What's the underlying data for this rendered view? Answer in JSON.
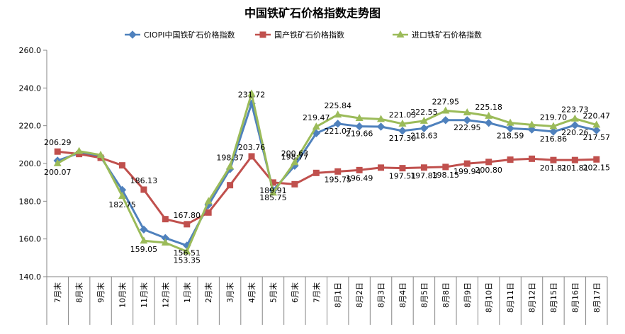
{
  "chart_data": {
    "type": "line",
    "title": "中国铁矿石价格指数走势图",
    "ylim": [
      140,
      260
    ],
    "yticks": [
      "140.0",
      "160.0",
      "180.0",
      "200.0",
      "220.0",
      "240.0",
      "260.0"
    ],
    "categories": [
      "7月末",
      "8月末",
      "9月末",
      "10月末",
      "11月末",
      "12月末",
      "1月末",
      "2月末",
      "3月末",
      "4月末",
      "5月末",
      "6月末",
      "7月末",
      "8月1日",
      "8月2日",
      "8月3日",
      "8月4日",
      "8月5日",
      "8月8日",
      "8月9日",
      "8月10日",
      "8月11日",
      "8月12日",
      "8月15日",
      "8月16日",
      "8月17日"
    ],
    "legend_position": "top",
    "series": [
      {
        "name": "CIOPI中国铁矿石价格指数",
        "color": "#4F81BD",
        "marker": "diamond",
        "values": [
          201.5,
          205.5,
          203.5,
          186.0,
          165.0,
          160.5,
          156.51,
          178.0,
          197.0,
          231.72,
          185.75,
          198.77,
          216.0,
          221.07,
          219.66,
          219.5,
          217.3,
          218.63,
          222.95,
          222.95,
          221.5,
          218.59,
          218.0,
          216.86,
          220.26,
          217.57
        ],
        "labels": [
          "",
          "",
          "",
          "",
          "",
          "",
          "156.51",
          "",
          "",
          "231.72",
          "185.75",
          "198.77",
          "",
          "221.07",
          "219.66",
          "",
          "217.30",
          "218.63",
          "",
          "222.95",
          "",
          "218.59",
          "",
          "216.86",
          "220.26",
          "217.57"
        ]
      },
      {
        "name": "国产铁矿石价格指数",
        "color": "#C0504D",
        "marker": "square",
        "values": [
          206.29,
          205.0,
          203.0,
          199.0,
          186.13,
          170.5,
          167.8,
          174.0,
          188.5,
          203.76,
          189.91,
          189.0,
          195.0,
          195.75,
          196.49,
          197.8,
          197.51,
          197.83,
          198.15,
          199.94,
          200.8,
          202.0,
          202.5,
          201.81,
          201.81,
          202.15
        ],
        "labels": [
          "206.29",
          "",
          "",
          "",
          "186.13",
          "",
          "167.80",
          "",
          "",
          "203.76",
          "189.91",
          "",
          "",
          "195.75",
          "196.49",
          "",
          "197.51",
          "197.83",
          "198.15",
          "199.94",
          "200.80",
          "",
          "",
          "201.81",
          "201.81",
          "202.15"
        ]
      },
      {
        "name": "进口铁矿石价格指数",
        "color": "#9BBB59",
        "marker": "triangle",
        "values": [
          200.07,
          206.5,
          204.5,
          182.75,
          159.05,
          158.0,
          153.35,
          180.0,
          198.37,
          237.0,
          184.5,
          200.63,
          219.47,
          225.84,
          224.0,
          223.5,
          221.03,
          222.55,
          227.95,
          227.0,
          225.18,
          221.5,
          220.5,
          219.7,
          223.73,
          220.47
        ],
        "labels": [
          "200.07",
          "",
          "",
          "182.75",
          "159.05",
          "",
          "153.35",
          "",
          "198.37",
          "",
          "",
          "200.63",
          "219.47",
          "225.84",
          "",
          "",
          "221.03",
          "222.55",
          "227.95",
          "",
          "225.18",
          "",
          "",
          "219.70",
          "223.73",
          "220.47"
        ]
      }
    ]
  }
}
